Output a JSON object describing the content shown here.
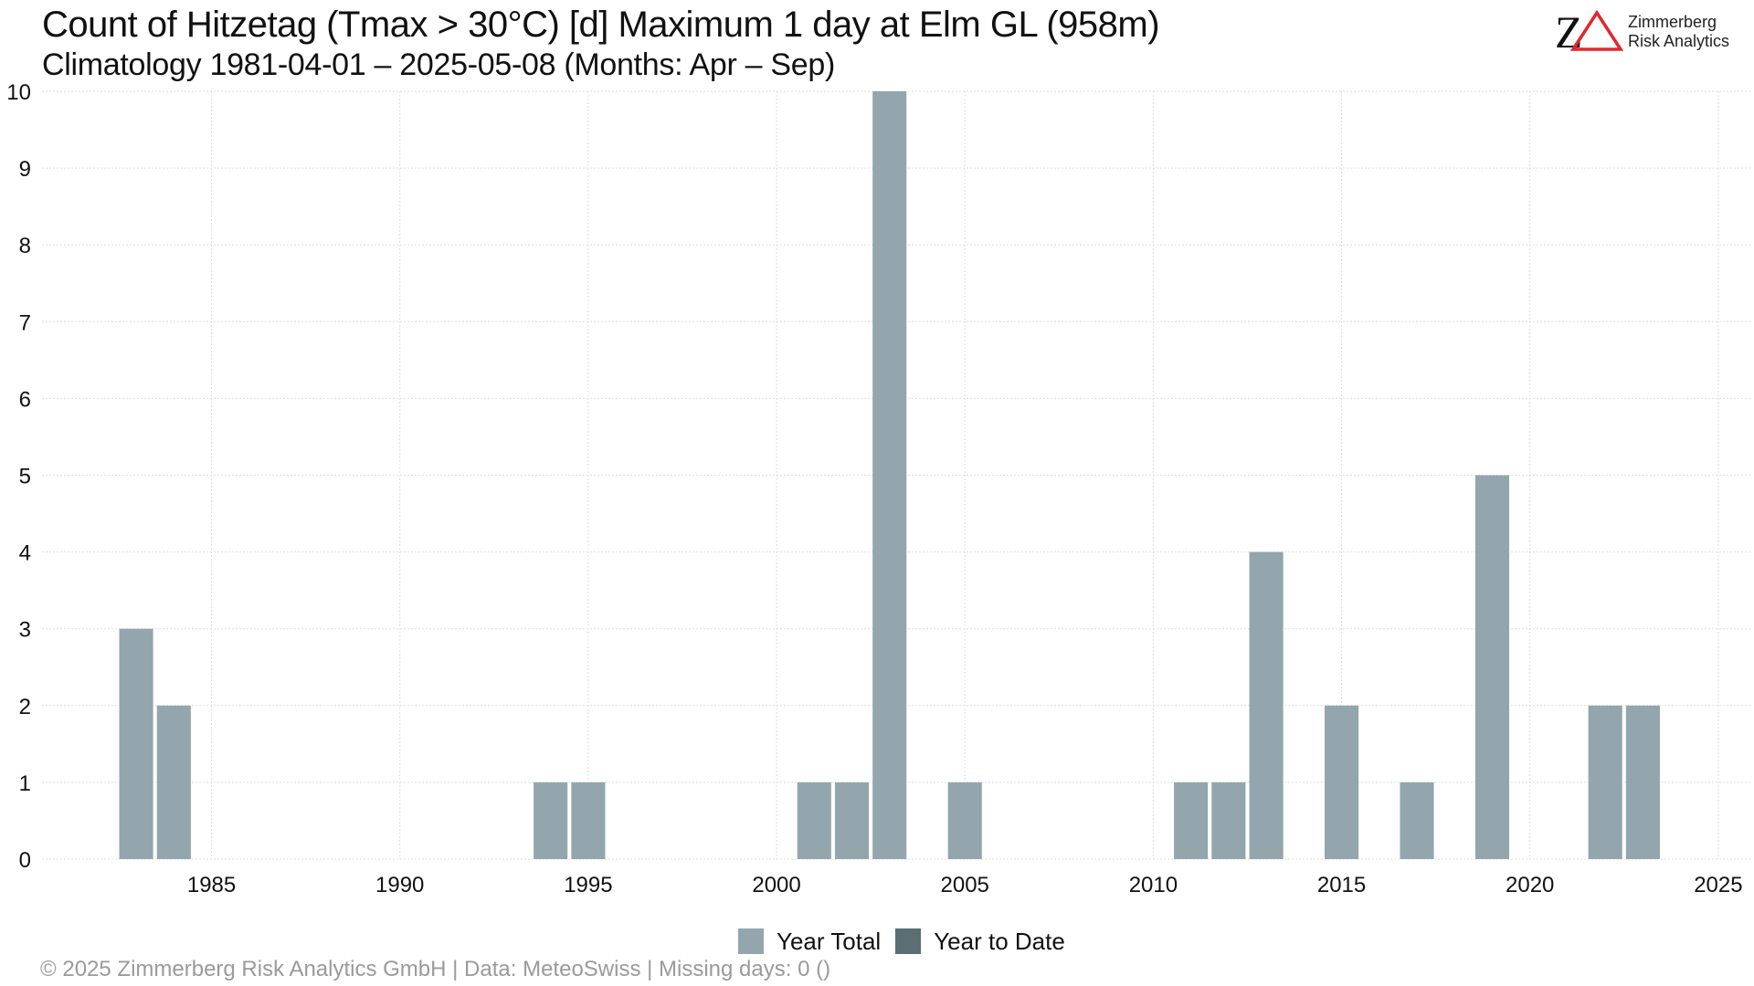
{
  "header": {
    "title": "Count of Hitzetag (Tmax > 30°C) [d] Maximum 1 day at Elm  GL (958m)",
    "subtitle": "Climatology 1981-04-01 – 2025-05-08 (Months: Apr – Sep)"
  },
  "logo": {
    "mark": "ZΔ",
    "line1": "Zimmerberg",
    "line2": "Risk Analytics",
    "colors": {
      "z": "#111111",
      "delta": "#e3262d"
    }
  },
  "legend": {
    "items": [
      {
        "label": "Year Total",
        "color": "#93a6ad"
      },
      {
        "label": "Year to Date",
        "color": "#5b6e74"
      }
    ]
  },
  "footer": {
    "text": "©  2025 Zimmerberg Risk Analytics GmbH | Data: MeteoSwiss | Missing days: 0 ()"
  },
  "chart_data": {
    "type": "bar",
    "title": "Count of Hitzetag (Tmax > 30°C) [d] Maximum 1 day at Elm  GL (958m)",
    "subtitle": "Climatology 1981-04-01 – 2025-05-08 (Months: Apr – Sep)",
    "xlabel": "",
    "ylabel": "",
    "xlim": [
      1980.5,
      2025.9
    ],
    "ylim": [
      0,
      10
    ],
    "xticks": [
      1985,
      1990,
      1995,
      2000,
      2005,
      2010,
      2015,
      2020,
      2025
    ],
    "yticks": [
      0,
      1,
      2,
      3,
      4,
      5,
      6,
      7,
      8,
      9,
      10
    ],
    "grid": true,
    "legend_position": "bottom",
    "series": [
      {
        "name": "Year Total",
        "color": "#93a6ad",
        "x": [
          1983,
          1984,
          1994,
          1995,
          2001,
          2002,
          2003,
          2005,
          2011,
          2012,
          2013,
          2015,
          2017,
          2019,
          2022,
          2023
        ],
        "values": [
          3,
          2,
          1,
          1,
          1,
          1,
          10,
          1,
          1,
          1,
          4,
          2,
          1,
          5,
          2,
          2
        ]
      },
      {
        "name": "Year to Date",
        "color": "#5b6e74",
        "x": [
          2025
        ],
        "values": [
          0
        ]
      }
    ]
  }
}
